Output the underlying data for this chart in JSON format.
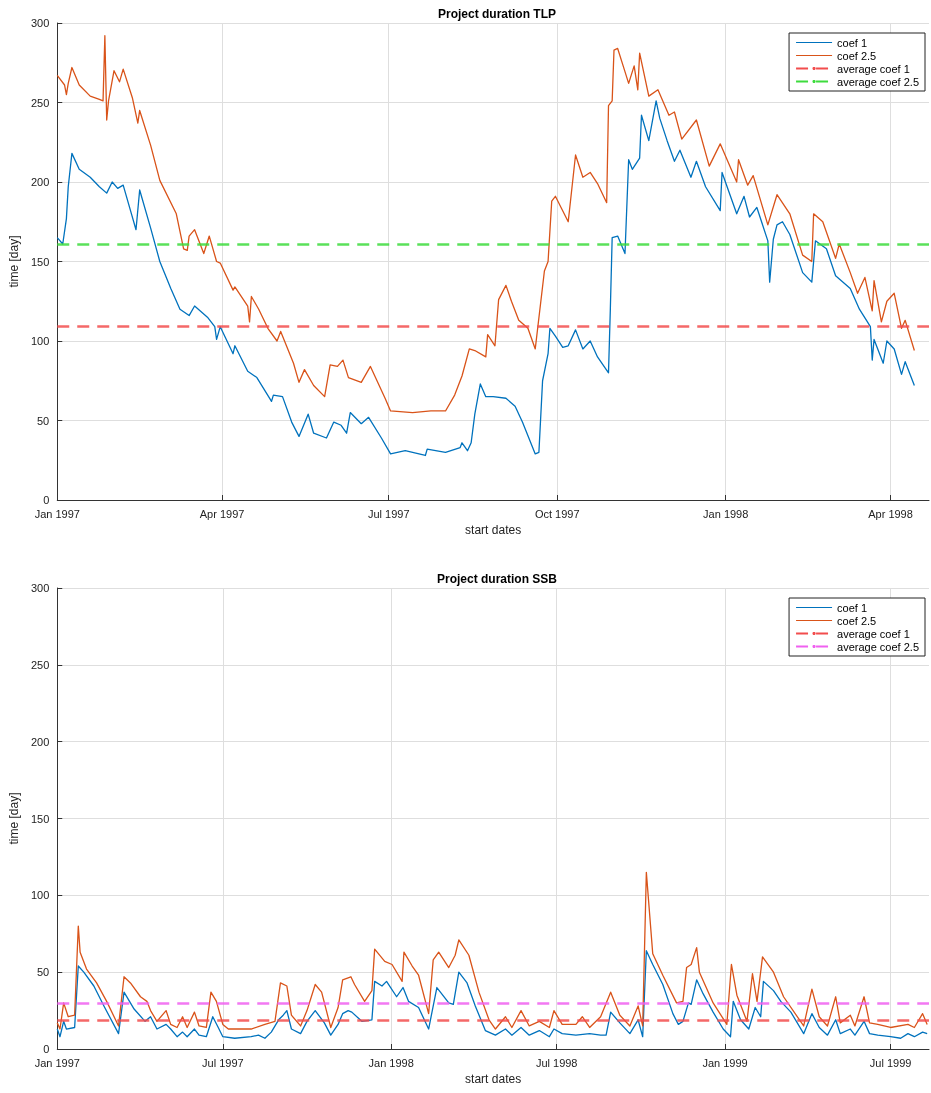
{
  "chart_data": [
    {
      "type": "line",
      "title": "Project duration TLP",
      "xlabel": "start dates",
      "ylabel": "time [day]",
      "xlim": [
        "1997-01-01",
        "1998-04-22"
      ],
      "xticks": [
        {
          "value": "1997-01-01",
          "label": "Jan 1997"
        },
        {
          "value": "1997-04-01",
          "label": "Apr 1997"
        },
        {
          "value": "1997-07-01",
          "label": "Jul 1997"
        },
        {
          "value": "1997-10-01",
          "label": "Oct 1997"
        },
        {
          "value": "1998-01-01",
          "label": "Jan 1998"
        },
        {
          "value": "1998-04-01",
          "label": "Apr 1998"
        }
      ],
      "ylim": [
        0,
        300
      ],
      "yticks": [
        0,
        50,
        100,
        150,
        200,
        250,
        300
      ],
      "grid": true,
      "legend": "top right",
      "marker": "none",
      "line_style": "solid",
      "series": [
        {
          "name": "coef 1",
          "color": "#0072bd",
          "x": [
            "1997-01-01",
            "1997-01-04",
            "1997-01-06",
            "1997-01-07",
            "1997-01-09",
            "1997-01-13",
            "1997-01-19",
            "1997-01-24",
            "1997-01-28",
            "1997-01-31",
            "1997-02-03",
            "1997-02-06",
            "1997-02-10",
            "1997-02-13",
            "1997-02-15",
            "1997-02-21",
            "1997-02-26",
            "1997-03-04",
            "1997-03-09",
            "1997-03-14",
            "1997-03-17",
            "1997-03-24",
            "1997-03-28",
            "1997-03-29",
            "1997-03-31",
            "1997-04-07",
            "1997-04-08",
            "1997-04-15",
            "1997-04-20",
            "1997-04-28",
            "1997-04-29",
            "1997-05-04",
            "1997-05-09",
            "1997-05-13",
            "1997-05-18",
            "1997-05-21",
            "1997-05-28",
            "1997-06-01",
            "1997-06-05",
            "1997-06-08",
            "1997-06-10",
            "1997-06-16",
            "1997-06-20",
            "1997-06-27",
            "1997-07-02",
            "1997-07-10",
            "1997-07-21",
            "1997-07-22",
            "1997-08-01",
            "1997-08-09",
            "1997-08-10",
            "1997-08-13",
            "1997-08-15",
            "1997-08-17",
            "1997-08-20",
            "1997-08-23",
            "1997-08-27",
            "1997-09-03",
            "1997-09-08",
            "1997-09-12",
            "1997-09-19",
            "1997-09-21",
            "1997-09-23",
            "1997-09-26",
            "1997-09-27",
            "1997-09-30",
            "1997-10-04",
            "1997-10-07",
            "1997-10-11",
            "1997-10-15",
            "1997-10-19",
            "1997-10-23",
            "1997-10-29",
            "1997-10-30",
            "1997-10-31",
            "1997-11-03",
            "1997-11-07",
            "1997-11-09",
            "1997-11-11",
            "1997-11-15",
            "1997-11-16",
            "1997-11-20",
            "1997-11-24",
            "1997-11-26",
            "1997-11-30",
            "1997-12-04",
            "1997-12-07",
            "1997-12-13",
            "1997-12-16",
            "1997-12-21",
            "1997-12-29",
            "1997-12-30",
            "1998-01-07",
            "1998-01-11",
            "1998-01-14",
            "1998-01-18",
            "1998-01-24",
            "1998-01-25",
            "1998-01-27",
            "1998-01-29",
            "1998-02-01",
            "1998-02-05",
            "1998-02-12",
            "1998-02-17",
            "1998-02-19",
            "1998-02-25",
            "1998-03-02",
            "1998-03-10",
            "1998-03-15",
            "1998-03-21",
            "1998-03-22",
            "1998-03-23",
            "1998-03-28",
            "1998-03-30",
            "1998-04-03",
            "1998-04-07",
            "1998-04-09",
            "1998-04-14"
          ],
          "values": [
            165,
            161,
            177,
            197,
            218,
            208,
            203,
            197,
            193,
            200,
            196,
            198,
            182,
            170,
            195,
            171,
            150,
            133,
            120,
            116,
            122,
            115,
            109,
            101,
            109,
            92,
            97,
            81,
            77,
            62,
            66,
            65,
            49,
            40,
            54,
            42,
            39,
            49,
            47,
            42,
            55,
            48,
            52,
            39,
            29,
            31,
            28,
            32,
            30,
            33,
            36,
            31,
            36,
            54,
            73,
            65,
            65,
            64,
            59,
            49,
            29,
            30,
            75,
            92,
            108,
            103,
            96,
            97,
            107,
            95,
            100,
            90,
            80,
            120,
            165,
            166,
            155,
            214,
            208,
            215,
            242,
            226,
            251,
            240,
            226,
            213,
            220,
            203,
            213,
            197,
            182,
            206,
            180,
            191,
            178,
            184,
            163,
            137,
            164,
            173,
            175,
            167,
            143,
            137,
            163,
            158,
            141,
            133,
            120,
            109,
            88,
            101,
            86,
            100,
            95,
            79,
            87,
            72
          ]
        },
        {
          "name": "coef 2.5",
          "color": "#d95319",
          "x": [
            "1997-01-01",
            "1997-01-05",
            "1997-01-06",
            "1997-01-07",
            "1997-01-09",
            "1997-01-13",
            "1997-01-19",
            "1997-01-24",
            "1997-01-26",
            "1997-01-27",
            "1997-01-28",
            "1997-01-29",
            "1997-02-01",
            "1997-02-04",
            "1997-02-06",
            "1997-02-11",
            "1997-02-14",
            "1997-02-15",
            "1997-02-21",
            "1997-02-26",
            "1997-03-07",
            "1997-03-11",
            "1997-03-13",
            "1997-03-14",
            "1997-03-17",
            "1997-03-22",
            "1997-03-25",
            "1997-03-29",
            "1997-03-31",
            "1997-04-07",
            "1997-04-08",
            "1997-04-15",
            "1997-04-16",
            "1997-04-17",
            "1997-04-21",
            "1997-04-26",
            "1997-05-01",
            "1997-05-03",
            "1997-05-10",
            "1997-05-13",
            "1997-05-16",
            "1997-05-21",
            "1997-05-27",
            "1997-05-30",
            "1997-06-03",
            "1997-06-06",
            "1997-06-09",
            "1997-06-16",
            "1997-06-21",
            "1997-06-29",
            "1997-07-02",
            "1997-07-14",
            "1997-07-24",
            "1997-08-01",
            "1997-08-06",
            "1997-08-10",
            "1997-08-14",
            "1997-08-17",
            "1997-08-23",
            "1997-08-24",
            "1997-08-28",
            "1997-08-30",
            "1997-09-03",
            "1997-09-06",
            "1997-09-10",
            "1997-09-15",
            "1997-09-19",
            "1997-09-24",
            "1997-09-26",
            "1997-09-28",
            "1997-09-30",
            "1997-10-07",
            "1997-10-11",
            "1997-10-15",
            "1997-10-19",
            "1997-10-23",
            "1997-10-28",
            "1997-10-29",
            "1997-10-31",
            "1997-11-01",
            "1997-11-03",
            "1997-11-06",
            "1997-11-09",
            "1997-11-12",
            "1997-11-14",
            "1997-11-15",
            "1997-11-20",
            "1997-11-25",
            "1997-12-01",
            "1997-12-04",
            "1997-12-08",
            "1997-12-16",
            "1997-12-23",
            "1997-12-29",
            "1998-01-07",
            "1998-01-08",
            "1998-01-13",
            "1998-01-16",
            "1998-01-24",
            "1998-01-29",
            "1998-02-05",
            "1998-02-12",
            "1998-02-17",
            "1998-02-18",
            "1998-02-23",
            "1998-03-02",
            "1998-03-04",
            "1998-03-10",
            "1998-03-14",
            "1998-03-18",
            "1998-03-22",
            "1998-03-23",
            "1998-03-27",
            "1998-03-30",
            "1998-04-03",
            "1998-04-07",
            "1998-04-09",
            "1998-04-14"
          ],
          "values": [
            267,
            261,
            255,
            262,
            272,
            261,
            254,
            252,
            251,
            292,
            239,
            251,
            270,
            263,
            271,
            253,
            237,
            245,
            223,
            201,
            180,
            158,
            157,
            166,
            170,
            155,
            166,
            150,
            149,
            132,
            134,
            122,
            112,
            128,
            120,
            108,
            100,
            106,
            86,
            74,
            82,
            72,
            65,
            85,
            84,
            88,
            77,
            74,
            84,
            64,
            56,
            55,
            56,
            56,
            66,
            78,
            95,
            94,
            90,
            104,
            97,
            126,
            135,
            125,
            113,
            108,
            95,
            144,
            150,
            188,
            191,
            175,
            217,
            203,
            206,
            199,
            187,
            248,
            251,
            283,
            284,
            273,
            262,
            273,
            258,
            281,
            254,
            258,
            242,
            244,
            227,
            239,
            210,
            224,
            200,
            214,
            198,
            204,
            173,
            192,
            180,
            154,
            150,
            180,
            175,
            152,
            161,
            143,
            130,
            140,
            119,
            138,
            112,
            125,
            130,
            108,
            113,
            94
          ]
        }
      ],
      "ref_lines": [
        {
          "axis": "y",
          "value": 109,
          "label": "average coef 1",
          "color": "#f24d4d",
          "line_style": "dashed"
        },
        {
          "axis": "y",
          "value": 161,
          "label": "average coef 2.5",
          "color": "#3ddc3d",
          "line_style": "dashed"
        }
      ]
    },
    {
      "type": "line",
      "title": "Project duration SSB",
      "xlabel": "start dates",
      "ylabel": "time [day]",
      "xlim": [
        "1997-01-01",
        "1999-08-12"
      ],
      "xticks": [
        {
          "value": "1997-01-01",
          "label": "Jan 1997"
        },
        {
          "value": "1997-07-01",
          "label": "Jul 1997"
        },
        {
          "value": "1998-01-01",
          "label": "Jan 1998"
        },
        {
          "value": "1998-07-01",
          "label": "Jul 1998"
        },
        {
          "value": "1999-01-01",
          "label": "Jan 1999"
        },
        {
          "value": "1999-07-01",
          "label": "Jul 1999"
        }
      ],
      "ylim": [
        0,
        300
      ],
      "yticks": [
        0,
        50,
        100,
        150,
        200,
        250,
        300
      ],
      "grid": true,
      "legend": "top right",
      "marker": "none",
      "line_style": "solid",
      "series": [
        {
          "name": "coef 1",
          "color": "#0072bd",
          "x": [
            "1997-01-01",
            "1997-01-04",
            "1997-01-08",
            "1997-01-11",
            "1997-01-20",
            "1997-01-24",
            "1997-01-30",
            "1997-02-10",
            "1997-02-21",
            "1997-03-09",
            "1997-03-15",
            "1997-03-26",
            "1997-04-07",
            "1997-04-13",
            "1997-04-20",
            "1997-04-30",
            "1997-05-05",
            "1997-05-12",
            "1997-05-18",
            "1997-05-23",
            "1997-05-31",
            "1997-06-05",
            "1997-06-13",
            "1997-06-20",
            "1997-06-26",
            "1997-07-01",
            "1997-07-14",
            "1997-08-01",
            "1997-08-09",
            "1997-08-16",
            "1997-08-23",
            "1997-08-31",
            "1997-09-05",
            "1997-09-09",
            "1997-09-14",
            "1997-09-24",
            "1997-10-01",
            "1997-10-10",
            "1997-10-20",
            "1997-10-27",
            "1997-11-04",
            "1997-11-09",
            "1997-11-15",
            "1997-11-19",
            "1997-11-30",
            "1997-12-11",
            "1997-12-14",
            "1997-12-22",
            "1997-12-27",
            "1998-01-07",
            "1998-01-14",
            "1998-01-20",
            "1998-01-31",
            "1998-02-11",
            "1998-02-20",
            "1998-03-05",
            "1998-03-10",
            "1998-03-16",
            "1998-03-25",
            "1998-04-03",
            "1998-04-14",
            "1998-04-25",
            "1998-05-06",
            "1998-05-13",
            "1998-05-23",
            "1998-06-01",
            "1998-06-12",
            "1998-06-23",
            "1998-06-28",
            "1998-07-07",
            "1998-07-22",
            "1998-08-06",
            "1998-08-18",
            "1998-08-24",
            "1998-08-29",
            "1998-09-08",
            "1998-09-19",
            "1998-09-28",
            "1998-10-03",
            "1998-10-07",
            "1998-10-14",
            "1998-10-25",
            "1998-11-05",
            "1998-11-11",
            "1998-11-16",
            "1998-11-22",
            "1998-11-25",
            "1998-12-01",
            "1998-12-08",
            "1998-12-19",
            "1998-12-30",
            "1999-01-07",
            "1999-01-10",
            "1999-01-18",
            "1999-01-27",
            "1999-02-03",
            "1999-02-09",
            "1999-02-12",
            "1999-02-23",
            "1999-03-03",
            "1999-03-14",
            "1999-03-28",
            "1999-04-06",
            "1999-04-14",
            "1999-04-23",
            "1999-05-02",
            "1999-05-07",
            "1999-05-18",
            "1999-05-23",
            "1999-06-02",
            "1999-06-08",
            "1999-06-17",
            "1999-07-01",
            "1999-07-12",
            "1999-07-20",
            "1999-07-27",
            "1999-08-05",
            "1999-08-10"
          ],
          "values": [
            13,
            8,
            18,
            13,
            14,
            54,
            50,
            41,
            28,
            10,
            37,
            26,
            18,
            21,
            13,
            16,
            13,
            8,
            11,
            8,
            13,
            9,
            8,
            21,
            14,
            8,
            7,
            8,
            9,
            7,
            11,
            19,
            22,
            25,
            13,
            10,
            18,
            25,
            17,
            9,
            16,
            23,
            25,
            24,
            18,
            19,
            44,
            41,
            44,
            34,
            40,
            31,
            27,
            13,
            40,
            30,
            29,
            50,
            43,
            28,
            12,
            9,
            13,
            9,
            14,
            9,
            12,
            8,
            13,
            10,
            9,
            10,
            9,
            9,
            24,
            17,
            10,
            19,
            8,
            64,
            55,
            42,
            23,
            16,
            18,
            30,
            29,
            45,
            36,
            24,
            13,
            8,
            31,
            19,
            13,
            27,
            21,
            44,
            38,
            31,
            24,
            10,
            23,
            14,
            9,
            19,
            10,
            13,
            9,
            18,
            10,
            9,
            8,
            7,
            10,
            8,
            11,
            10
          ]
        },
        {
          "name": "coef 2.5",
          "color": "#d95319",
          "x": [
            "1997-01-01",
            "1997-01-04",
            "1997-01-08",
            "1997-01-13",
            "1997-01-20",
            "1997-01-24",
            "1997-01-26",
            "1997-02-02",
            "1997-02-13",
            "1997-02-24",
            "1997-03-09",
            "1997-03-15",
            "1997-03-22",
            "1997-04-02",
            "1997-04-09",
            "1997-04-13",
            "1997-04-20",
            "1997-04-30",
            "1997-05-05",
            "1997-05-12",
            "1997-05-18",
            "1997-05-23",
            "1997-05-31",
            "1997-06-05",
            "1997-06-13",
            "1997-06-18",
            "1997-06-24",
            "1997-07-01",
            "1997-07-07",
            "1997-08-01",
            "1997-08-16",
            "1997-08-27",
            "1997-09-02",
            "1997-09-09",
            "1997-09-14",
            "1997-09-24",
            "1997-10-01",
            "1997-10-10",
            "1997-10-17",
            "1997-10-27",
            "1997-11-04",
            "1997-11-09",
            "1997-11-18",
            "1997-11-22",
            "1997-12-03",
            "1997-12-11",
            "1997-12-14",
            "1997-12-25",
            "1998-01-02",
            "1998-01-13",
            "1998-01-15",
            "1998-01-24",
            "1998-01-31",
            "1998-02-11",
            "1998-02-16",
            "1998-02-22",
            "1998-03-05",
            "1998-03-12",
            "1998-03-16",
            "1998-03-27",
            "1998-04-07",
            "1998-04-18",
            "1998-04-25",
            "1998-05-06",
            "1998-05-13",
            "1998-05-23",
            "1998-06-01",
            "1998-06-12",
            "1998-06-23",
            "1998-06-28",
            "1998-07-07",
            "1998-07-22",
            "1998-07-29",
            "1998-08-06",
            "1998-08-18",
            "1998-08-29",
            "1998-09-08",
            "1998-09-19",
            "1998-09-28",
            "1998-10-03",
            "1998-10-07",
            "1998-10-14",
            "1998-10-25",
            "1998-11-09",
            "1998-11-16",
            "1998-11-20",
            "1998-11-25",
            "1998-12-01",
            "1998-12-04",
            "1998-12-19",
            "1999-01-03",
            "1999-01-08",
            "1999-01-14",
            "1999-01-25",
            "1999-01-31",
            "1999-02-05",
            "1999-02-11",
            "1999-02-23",
            "1999-03-06",
            "1999-03-28",
            "1999-04-06",
            "1999-04-14",
            "1999-04-23",
            "1999-05-02",
            "1999-05-07",
            "1999-05-18",
            "1999-05-23",
            "1999-06-02",
            "1999-06-08",
            "1999-06-17",
            "1999-07-01",
            "1999-07-20",
            "1999-07-27",
            "1999-08-05",
            "1999-08-10"
          ],
          "values": [
            17,
            13,
            30,
            21,
            22,
            80,
            63,
            52,
            43,
            31,
            15,
            47,
            43,
            34,
            31,
            25,
            18,
            25,
            16,
            14,
            21,
            14,
            24,
            15,
            14,
            37,
            31,
            16,
            13,
            13,
            16,
            18,
            43,
            41,
            22,
            15,
            25,
            42,
            37,
            14,
            27,
            45,
            47,
            42,
            31,
            38,
            65,
            57,
            55,
            44,
            63,
            54,
            48,
            23,
            58,
            63,
            53,
            61,
            71,
            61,
            37,
            19,
            13,
            21,
            14,
            25,
            15,
            18,
            14,
            25,
            16,
            16,
            21,
            14,
            21,
            37,
            22,
            15,
            28,
            15,
            115,
            62,
            48,
            30,
            31,
            53,
            55,
            66,
            50,
            30,
            16,
            55,
            35,
            18,
            49,
            31,
            60,
            50,
            34,
            15,
            39,
            21,
            15,
            34,
            17,
            22,
            15,
            34,
            17,
            16,
            14,
            16,
            14,
            23,
            16
          ]
        }
      ],
      "ref_lines": [
        {
          "axis": "y",
          "value": 19,
          "label": "average coef 1",
          "color": "#f24d4d",
          "line_style": "dashed"
        },
        {
          "axis": "y",
          "value": 30,
          "label": "average coef 2.5",
          "color": "#f060f0",
          "line_style": "dashed"
        }
      ]
    }
  ]
}
